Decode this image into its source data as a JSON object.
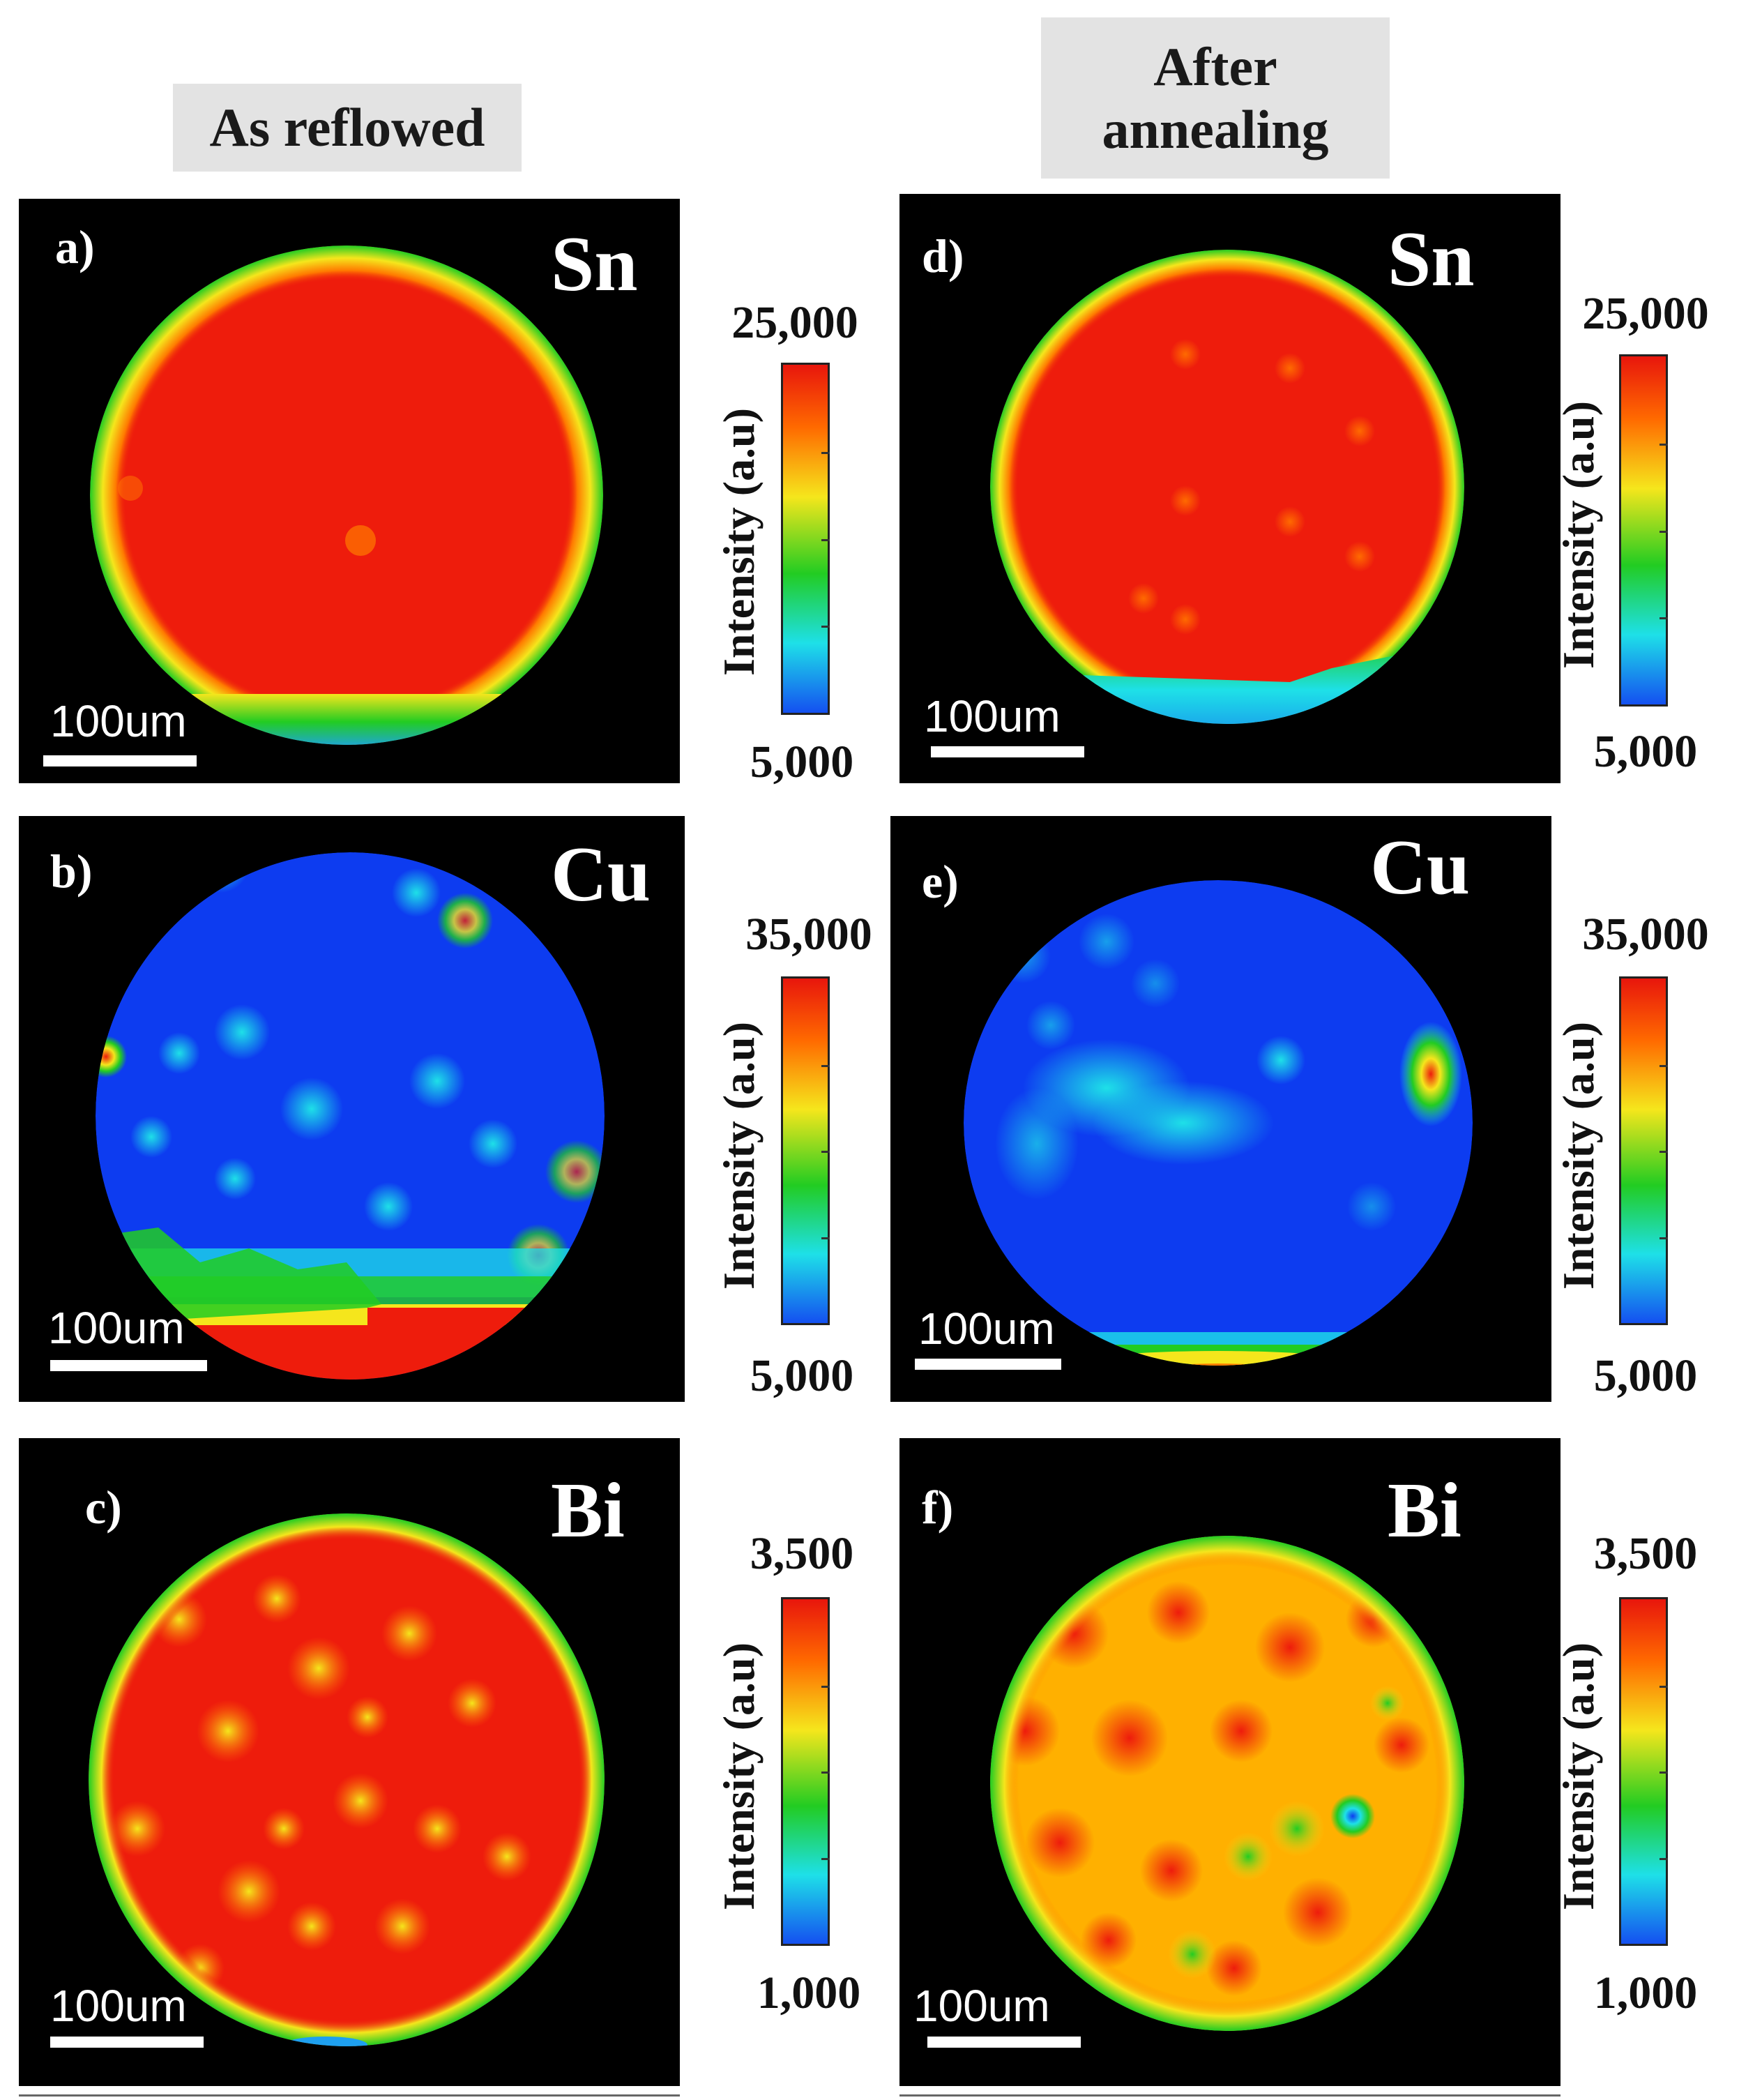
{
  "headers": {
    "left": "As reflowed",
    "right": "After\nannealing"
  },
  "panels": [
    {
      "id": "a",
      "label": "a)",
      "element": "Sn",
      "scale_text": "100um",
      "cbar_max": "25,000",
      "cbar_min": "5,000",
      "cbar_title": "Intensity (a.u)",
      "dominant": "red"
    },
    {
      "id": "b",
      "label": "b)",
      "element": "Cu",
      "scale_text": "100um",
      "cbar_max": "35,000",
      "cbar_min": "5,000",
      "cbar_title": "Intensity (a.u)",
      "dominant": "blue"
    },
    {
      "id": "c",
      "label": "c)",
      "element": "Bi",
      "scale_text": "100um",
      "cbar_max": "3,500",
      "cbar_min": "1,000",
      "cbar_title": "Intensity (a.u)",
      "dominant": "red-yellow"
    },
    {
      "id": "d",
      "label": "d)",
      "element": "Sn",
      "scale_text": "100um",
      "cbar_max": "25,000",
      "cbar_min": "5,000",
      "cbar_title": "Intensity (a.u)",
      "dominant": "red"
    },
    {
      "id": "e",
      "label": "e)",
      "element": "Cu",
      "scale_text": "100um",
      "cbar_max": "35,000",
      "cbar_min": "5,000",
      "cbar_title": "Intensity (a.u)",
      "dominant": "blue"
    },
    {
      "id": "f",
      "label": "f)",
      "element": "Bi",
      "scale_text": "100um",
      "cbar_max": "3,500",
      "cbar_min": "1,000",
      "cbar_title": "Intensity (a.u)",
      "dominant": "yellow-red"
    }
  ],
  "colors": {
    "red": "#ee1c0c",
    "orange": "#ff7a00",
    "yellow": "#f5e61c",
    "green": "#22cc22",
    "cyan": "#1ee0e8",
    "blue": "#0d3cf0",
    "black": "#000000"
  }
}
